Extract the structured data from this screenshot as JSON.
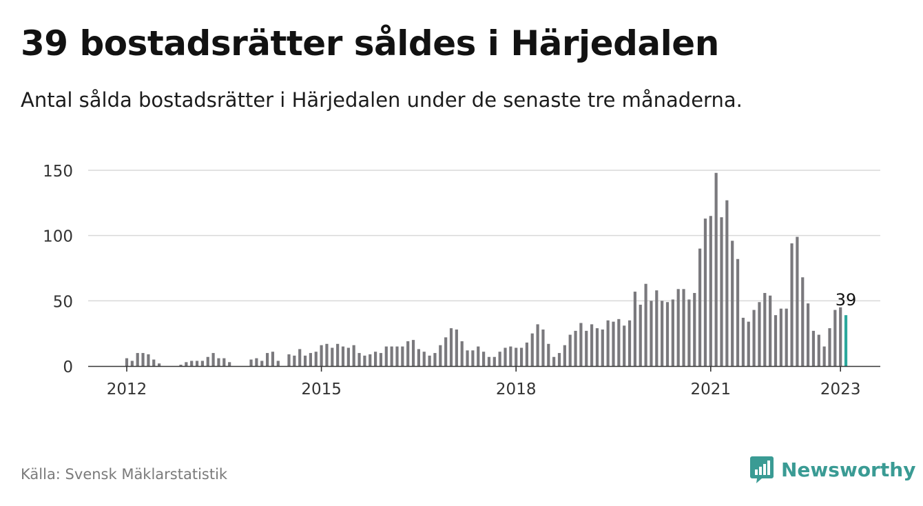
{
  "header": {
    "title": "39 bostadsrätter såldes i Härjedalen",
    "subtitle": "Antal sålda bostadsrätter i Härjedalen under de senaste tre månaderna."
  },
  "footer": {
    "source": "Källa: Svensk Mäklarstatistik",
    "brand": "Newsworthy"
  },
  "colors": {
    "bar": "#7a797d",
    "highlight": "#2ba89c",
    "grid": "#d9d9d9",
    "axis": "#333333",
    "brand": "#3a9b94"
  },
  "chart_data": {
    "type": "bar",
    "title": "39 bostadsrätter såldes i Härjedalen",
    "subtitle": "Antal sålda bostadsrätter i Härjedalen under de senaste tre månaderna.",
    "xlabel": "",
    "ylabel": "",
    "x_start": "2012-01",
    "x_end": "2023-01",
    "x_ticks": [
      "2012",
      "2015",
      "2018",
      "2021",
      "2023"
    ],
    "y_ticks": [
      0,
      50,
      100,
      150
    ],
    "ylim": [
      0,
      150
    ],
    "grid": true,
    "highlight_label": "39",
    "series": [
      {
        "values": [
          6,
          4,
          10,
          10,
          9,
          5,
          2,
          0,
          0,
          0,
          1,
          3,
          4,
          4,
          4,
          7,
          10,
          6,
          6,
          3,
          0,
          0,
          0,
          5,
          6,
          4,
          10,
          11,
          4,
          0,
          9,
          8,
          13,
          8,
          10,
          11,
          16,
          17,
          14,
          17,
          15,
          14,
          16,
          10,
          8,
          9,
          11,
          10,
          15,
          15,
          15,
          15,
          19,
          20,
          13,
          11,
          8,
          10,
          16,
          22,
          29,
          28,
          19,
          12,
          12,
          15,
          11,
          7,
          7,
          11,
          14,
          15,
          14,
          14,
          18,
          25,
          32,
          28,
          17,
          7,
          10,
          16,
          24,
          27,
          33,
          27,
          32,
          29,
          28,
          35,
          34,
          36,
          31,
          35,
          57,
          47,
          63,
          50,
          58,
          50,
          49,
          51,
          59,
          59,
          51,
          56,
          90,
          113,
          115,
          148,
          114,
          127,
          96,
          82,
          37,
          34,
          43,
          49,
          56,
          54,
          39,
          44,
          44,
          94,
          99,
          68,
          48,
          27,
          24,
          15,
          29,
          43,
          45,
          39
        ]
      }
    ]
  }
}
